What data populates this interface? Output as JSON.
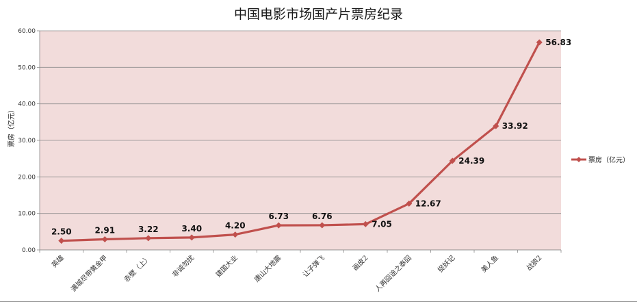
{
  "chart_data": {
    "type": "line",
    "title": "中国电影市场国产片票房纪录",
    "ylabel": "票房（亿元）",
    "xlabel": "",
    "ylim": [
      0,
      60
    ],
    "yticks": [
      "0.00",
      "10.00",
      "20.00",
      "30.00",
      "40.00",
      "50.00",
      "60.00"
    ],
    "categories": [
      "英雄",
      "满城尽带黄金甲",
      "赤壁（上）",
      "非诚勿扰",
      "建国大业",
      "唐山大地震",
      "让子弹飞",
      "画皮2",
      "人再囧途之泰囧",
      "捉妖记",
      "美人鱼",
      "战狼2"
    ],
    "series": [
      {
        "name": "票房（亿元）",
        "values": [
          2.5,
          2.91,
          3.22,
          3.4,
          4.2,
          6.73,
          6.76,
          7.05,
          12.67,
          24.39,
          33.92,
          56.83
        ],
        "labels": [
          "2.50",
          "2.91",
          "3.22",
          "3.40",
          "4.20",
          "6.73",
          "6.76",
          "7.05",
          "12.67",
          "24.39",
          "33.92",
          "56.83"
        ]
      }
    ],
    "grid": true,
    "legend_position": "right",
    "colors": {
      "line": "#c0504d",
      "plot_bg": "#f2dcdb",
      "grid": "#8c8c8c"
    }
  }
}
